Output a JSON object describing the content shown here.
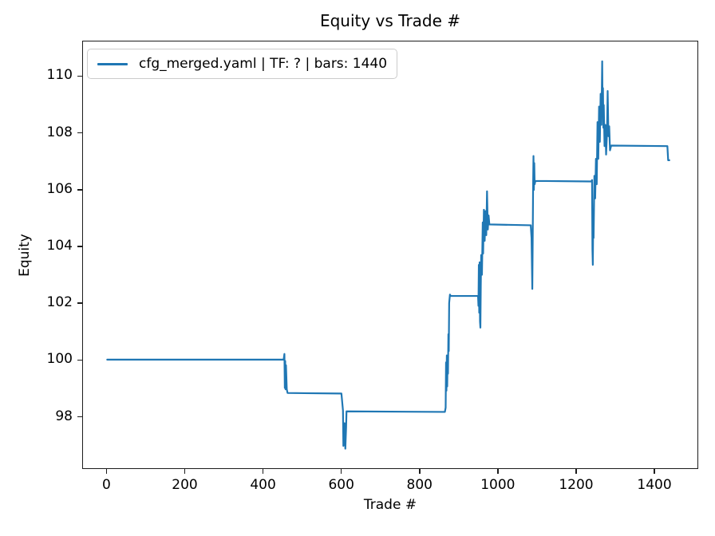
{
  "figure": {
    "background": "#ffffff"
  },
  "chart_data": {
    "type": "line",
    "title": "Equity vs Trade #",
    "xlabel": "Trade #",
    "ylabel": "Equity",
    "xlim": [
      -62,
      1512
    ],
    "ylim": [
      96.16,
      111.25
    ],
    "xticks": [
      0,
      200,
      400,
      600,
      800,
      1000,
      1200,
      1400
    ],
    "yticks": [
      98,
      100,
      102,
      104,
      106,
      108,
      110
    ],
    "grid": false,
    "legend_position": "upper-left",
    "axis_color": "#1c1c1c",
    "series": [
      {
        "name": "cfg_merged.yaml | TF: ? | bars: 1440",
        "color": "#1f77b4",
        "line_width": 2.2,
        "points": [
          [
            0,
            100
          ],
          [
            452,
            100
          ],
          [
            454,
            100.2
          ],
          [
            455,
            99.0
          ],
          [
            456,
            99.95
          ],
          [
            457,
            98.95
          ],
          [
            458,
            99.8
          ],
          [
            460,
            98.95
          ],
          [
            462,
            98.82
          ],
          [
            600,
            98.8
          ],
          [
            604,
            98.2
          ],
          [
            605,
            96.95
          ],
          [
            607,
            97.0
          ],
          [
            608,
            97.75
          ],
          [
            610,
            96.85
          ],
          [
            612,
            97.6
          ],
          [
            613,
            98.17
          ],
          [
            865,
            98.15
          ],
          [
            867,
            98.3
          ],
          [
            868,
            99.9
          ],
          [
            869,
            98.9
          ],
          [
            870,
            100.15
          ],
          [
            871,
            99.05
          ],
          [
            872,
            100.1
          ],
          [
            873,
            99.5
          ],
          [
            874,
            100.9
          ],
          [
            875,
            100.3
          ],
          [
            876,
            102.0
          ],
          [
            878,
            102.3
          ],
          [
            880,
            102.25
          ],
          [
            950,
            102.25
          ],
          [
            951,
            101.9
          ],
          [
            952,
            103.35
          ],
          [
            953,
            101.66
          ],
          [
            954,
            103.44
          ],
          [
            955,
            101.35
          ],
          [
            956,
            101.13
          ],
          [
            957,
            102.6
          ],
          [
            958,
            103.7
          ],
          [
            960,
            103.0
          ],
          [
            962,
            104.85
          ],
          [
            963,
            103.75
          ],
          [
            965,
            105.3
          ],
          [
            967,
            104.2
          ],
          [
            969,
            105.25
          ],
          [
            971,
            104.4
          ],
          [
            973,
            105.95
          ],
          [
            975,
            104.6
          ],
          [
            977,
            105.1
          ],
          [
            979,
            104.78
          ],
          [
            1085,
            104.75
          ],
          [
            1087,
            104.3
          ],
          [
            1088,
            103.4
          ],
          [
            1089,
            102.5
          ],
          [
            1090,
            104.2
          ],
          [
            1091,
            106.1
          ],
          [
            1092,
            107.2
          ],
          [
            1093,
            106.0
          ],
          [
            1094,
            106.95
          ],
          [
            1095,
            106.2
          ],
          [
            1097,
            106.32
          ],
          [
            1240,
            106.3
          ],
          [
            1242,
            106.35
          ],
          [
            1243,
            103.9
          ],
          [
            1244,
            103.35
          ],
          [
            1245,
            104.9
          ],
          [
            1246,
            104.3
          ],
          [
            1248,
            106.5
          ],
          [
            1250,
            105.7
          ],
          [
            1252,
            107.1
          ],
          [
            1254,
            106.2
          ],
          [
            1256,
            108.4
          ],
          [
            1258,
            107.1
          ],
          [
            1260,
            108.95
          ],
          [
            1262,
            107.7
          ],
          [
            1264,
            109.4
          ],
          [
            1266,
            108.3
          ],
          [
            1268,
            110.55
          ],
          [
            1269,
            108.9
          ],
          [
            1270,
            109.6
          ],
          [
            1271,
            108.2
          ],
          [
            1272,
            109.0
          ],
          [
            1274,
            107.55
          ],
          [
            1276,
            108.3
          ],
          [
            1278,
            107.25
          ],
          [
            1280,
            107.9
          ],
          [
            1281,
            108.6
          ],
          [
            1282,
            109.5
          ],
          [
            1284,
            107.9
          ],
          [
            1286,
            108.25
          ],
          [
            1288,
            107.4
          ],
          [
            1291,
            107.57
          ],
          [
            1435,
            107.55
          ],
          [
            1437,
            107.05
          ],
          [
            1440,
            107.05
          ]
        ]
      }
    ]
  }
}
